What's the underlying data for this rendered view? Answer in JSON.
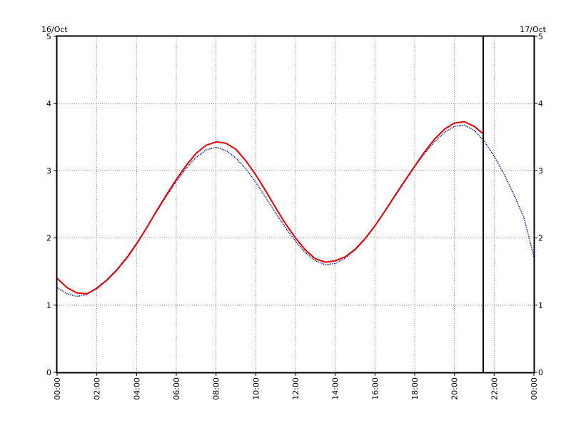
{
  "chart_data": {
    "type": "line",
    "date_labels": {
      "left": "16/Oct",
      "right": "17/Oct"
    },
    "x_unit": "hours",
    "xlim": [
      0,
      24
    ],
    "ylim": [
      0,
      5
    ],
    "x_ticks": [
      {
        "v": 0,
        "label": "00:00"
      },
      {
        "v": 2,
        "label": "02:00"
      },
      {
        "v": 4,
        "label": "04:00"
      },
      {
        "v": 6,
        "label": "06:00"
      },
      {
        "v": 8,
        "label": "08:00"
      },
      {
        "v": 10,
        "label": "10:00"
      },
      {
        "v": 12,
        "label": "12:00"
      },
      {
        "v": 14,
        "label": "14:00"
      },
      {
        "v": 16,
        "label": "16:00"
      },
      {
        "v": 18,
        "label": "18:00"
      },
      {
        "v": 20,
        "label": "20:00"
      },
      {
        "v": 22,
        "label": "22:00"
      },
      {
        "v": 24,
        "label": "00:00"
      }
    ],
    "y_ticks": [
      0,
      1,
      2,
      3,
      4,
      5
    ],
    "grid": true,
    "current_time_marker": 21.45,
    "series": [
      {
        "color": "#00008b",
        "style": "dotted",
        "points": [
          [
            0,
            1.26
          ],
          [
            0.5,
            1.17
          ],
          [
            1,
            1.13
          ],
          [
            1.5,
            1.16
          ],
          [
            2,
            1.26
          ],
          [
            2.5,
            1.38
          ],
          [
            3,
            1.53
          ],
          [
            3.5,
            1.71
          ],
          [
            4,
            1.92
          ],
          [
            4.5,
            2.15
          ],
          [
            5,
            2.39
          ],
          [
            5.5,
            2.62
          ],
          [
            6,
            2.84
          ],
          [
            6.5,
            3.04
          ],
          [
            7,
            3.2
          ],
          [
            7.5,
            3.31
          ],
          [
            8,
            3.35
          ],
          [
            8.5,
            3.3
          ],
          [
            9,
            3.19
          ],
          [
            9.5,
            3.03
          ],
          [
            10,
            2.83
          ],
          [
            10.5,
            2.6
          ],
          [
            11,
            2.37
          ],
          [
            11.5,
            2.15
          ],
          [
            12,
            1.95
          ],
          [
            12.5,
            1.78
          ],
          [
            13,
            1.66
          ],
          [
            13.5,
            1.6
          ],
          [
            14,
            1.62
          ],
          [
            14.5,
            1.7
          ],
          [
            15,
            1.82
          ],
          [
            15.5,
            1.98
          ],
          [
            16,
            2.18
          ],
          [
            16.5,
            2.4
          ],
          [
            17,
            2.62
          ],
          [
            17.5,
            2.84
          ],
          [
            18,
            3.06
          ],
          [
            18.5,
            3.26
          ],
          [
            19,
            3.43
          ],
          [
            19.5,
            3.57
          ],
          [
            20,
            3.66
          ],
          [
            20.5,
            3.68
          ],
          [
            21,
            3.6
          ],
          [
            21.5,
            3.44
          ],
          [
            22,
            3.22
          ],
          [
            22.5,
            2.95
          ],
          [
            23,
            2.64
          ],
          [
            23.5,
            2.3
          ],
          [
            24,
            1.72
          ]
        ]
      },
      {
        "color": "#e00000",
        "style": "solid",
        "points": [
          [
            0,
            1.4
          ],
          [
            0.5,
            1.26
          ],
          [
            1,
            1.18
          ],
          [
            1.5,
            1.17
          ],
          [
            2,
            1.25
          ],
          [
            2.5,
            1.37
          ],
          [
            3,
            1.52
          ],
          [
            3.5,
            1.7
          ],
          [
            4,
            1.91
          ],
          [
            4.5,
            2.15
          ],
          [
            5,
            2.4
          ],
          [
            5.5,
            2.64
          ],
          [
            6,
            2.87
          ],
          [
            6.5,
            3.08
          ],
          [
            7,
            3.26
          ],
          [
            7.5,
            3.38
          ],
          [
            8,
            3.43
          ],
          [
            8.5,
            3.41
          ],
          [
            9,
            3.32
          ],
          [
            9.5,
            3.15
          ],
          [
            10,
            2.94
          ],
          [
            10.5,
            2.7
          ],
          [
            11,
            2.45
          ],
          [
            11.5,
            2.21
          ],
          [
            12,
            2.0
          ],
          [
            12.5,
            1.82
          ],
          [
            13,
            1.69
          ],
          [
            13.5,
            1.64
          ],
          [
            14,
            1.66
          ],
          [
            14.5,
            1.72
          ],
          [
            15,
            1.83
          ],
          [
            15.5,
            1.99
          ],
          [
            16,
            2.18
          ],
          [
            16.5,
            2.4
          ],
          [
            17,
            2.63
          ],
          [
            17.5,
            2.85
          ],
          [
            18,
            3.07
          ],
          [
            18.5,
            3.28
          ],
          [
            19,
            3.47
          ],
          [
            19.5,
            3.62
          ],
          [
            20,
            3.71
          ],
          [
            20.5,
            3.73
          ],
          [
            21,
            3.66
          ],
          [
            21.4,
            3.56
          ]
        ]
      }
    ]
  }
}
